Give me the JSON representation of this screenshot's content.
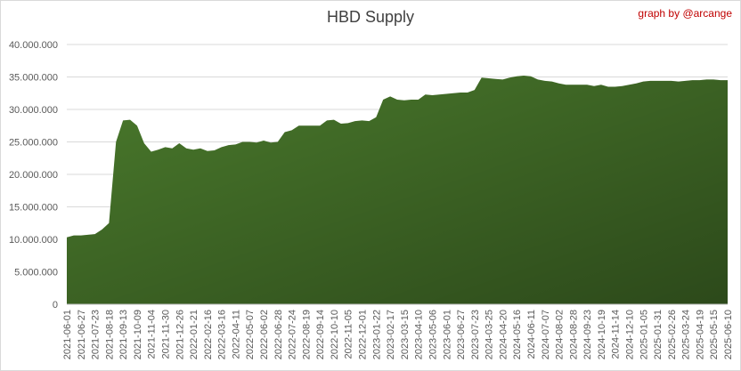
{
  "chart_data": {
    "type": "area",
    "title": "HBD Supply",
    "annotation": "graph by @arcange",
    "color": "#4a7a2c",
    "grid": true,
    "ylim": [
      0,
      40000000
    ],
    "yticks": [
      0,
      {
        "value": 5000000,
        "label": "5.000.000"
      },
      {
        "value": 10000000,
        "label": "10.000.000"
      },
      {
        "value": 15000000,
        "label": "15.000.000"
      },
      {
        "value": 20000000,
        "label": "20.000.000"
      },
      {
        "value": 25000000,
        "label": "25.000.000"
      },
      {
        "value": 30000000,
        "label": "30.000.000"
      },
      {
        "value": 35000000,
        "label": "35.000.000"
      },
      {
        "value": 40000000,
        "label": "40.000.000"
      }
    ],
    "categories": [
      "2021-06-01",
      null,
      "2021-06-27",
      null,
      "2021-07-23",
      null,
      "2021-08-18",
      null,
      "2021-09-13",
      null,
      "2021-10-09",
      null,
      "2021-11-04",
      null,
      "2021-11-30",
      null,
      "2021-12-26",
      null,
      "2022-01-21",
      null,
      "2022-02-16",
      null,
      "2022-03-16",
      null,
      "2022-04-11",
      null,
      "2022-05-07",
      null,
      "2022-06-02",
      null,
      "2022-06-28",
      null,
      "2022-07-24",
      null,
      "2022-08-19",
      null,
      "2022-09-14",
      null,
      "2022-10-10",
      null,
      "2022-11-05",
      null,
      "2022-12-01",
      null,
      "2023-01-22",
      null,
      "2023-02-17",
      null,
      "2023-03-15",
      null,
      "2023-04-10",
      null,
      "2023-05-06",
      null,
      "2023-06-01",
      null,
      "2023-06-27",
      null,
      "2023-07-23",
      null,
      "2024-03-25",
      null,
      "2024-04-20",
      null,
      "2024-05-16",
      null,
      "2024-06-11",
      null,
      "2024-07-07",
      null,
      "2024-08-02",
      null,
      "2024-08-28",
      null,
      "2024-09-23",
      null,
      "2024-10-19",
      null,
      "2024-11-14",
      null,
      "2024-12-10",
      null,
      "2025-01-05",
      null,
      "2025-01-31",
      null,
      "2025-02-26",
      null,
      "2025-03-24",
      null,
      "2025-04-19",
      null,
      "2025-05-15",
      null,
      "2025-06-10"
    ],
    "values": [
      10300000,
      10600000,
      10600000,
      10700000,
      10800000,
      11500000,
      12500000,
      25000000,
      28300000,
      28400000,
      27500000,
      24800000,
      23500000,
      23800000,
      24200000,
      24000000,
      24800000,
      24000000,
      23800000,
      24000000,
      23600000,
      23700000,
      24200000,
      24500000,
      24600000,
      25000000,
      25000000,
      24900000,
      25200000,
      24900000,
      25000000,
      26500000,
      26800000,
      27500000,
      27500000,
      27500000,
      27500000,
      28300000,
      28400000,
      27800000,
      27900000,
      28200000,
      28300000,
      28200000,
      28800000,
      31500000,
      32000000,
      31500000,
      31400000,
      31500000,
      31500000,
      32300000,
      32200000,
      32300000,
      32400000,
      32500000,
      32600000,
      32600000,
      33000000,
      34900000,
      34800000,
      34700000,
      34600000,
      34900000,
      35100000,
      35200000,
      35100000,
      34600000,
      34400000,
      34300000,
      34000000,
      33800000,
      33800000,
      33800000,
      33800000,
      33600000,
      33800000,
      33500000,
      33500000,
      33600000,
      33800000,
      34000000,
      34300000,
      34400000,
      34400000,
      34400000,
      34400000,
      34300000,
      34400000,
      34500000,
      34500000,
      34600000,
      34600000,
      34500000,
      34500000
    ]
  }
}
